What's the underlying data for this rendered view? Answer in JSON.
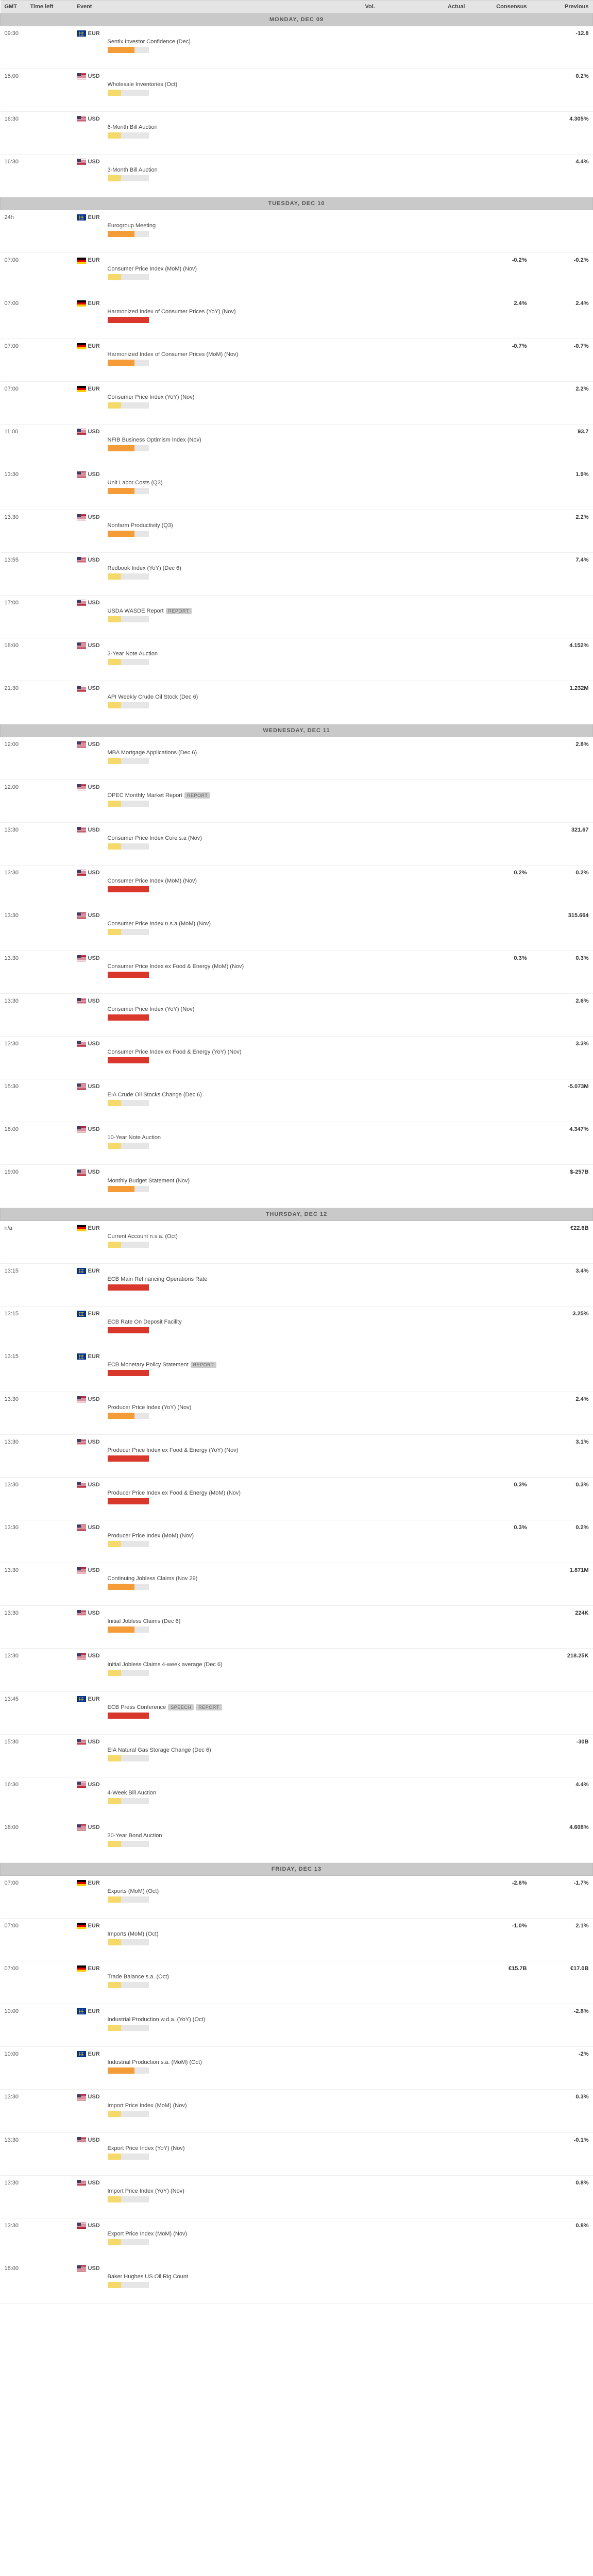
{
  "headers": {
    "gmt": "GMT",
    "tleft": "Time left",
    "event": "Event",
    "vol": "Vol.",
    "actual": "Actual",
    "consensus": "Consensus",
    "previous": "Previous"
  },
  "vol_colors": {
    "low": "#f6d96b",
    "med": "#f39c38",
    "high": "#d9362c",
    "bg": "#e6e6e6"
  },
  "days": [
    {
      "label": "MONDAY, DEC 09",
      "events": [
        {
          "time": "09:30",
          "cur": "EUR",
          "flag": "eu",
          "name": "Sentix Investor Confidence (Dec)",
          "vol": "med",
          "previous": "-12.8"
        },
        {
          "time": "15:00",
          "cur": "USD",
          "flag": "us",
          "name": "Wholesale Inventories (Oct)",
          "vol": "low",
          "previous": "0.2%"
        },
        {
          "time": "16:30",
          "cur": "USD",
          "flag": "us",
          "name": "6-Month Bill Auction",
          "vol": "low",
          "previous": "4.305%"
        },
        {
          "time": "16:30",
          "cur": "USD",
          "flag": "us",
          "name": "3-Month Bill Auction",
          "vol": "low",
          "previous": "4.4%"
        }
      ]
    },
    {
      "label": "TUESDAY, DEC 10",
      "events": [
        {
          "time": "24h",
          "cur": "EUR",
          "flag": "eu",
          "name": "Eurogroup Meeting",
          "vol": "med"
        },
        {
          "time": "07:00",
          "cur": "EUR",
          "flag": "de",
          "name": "Consumer Price Index (MoM) (Nov)",
          "vol": "low",
          "consensus": "-0.2%",
          "previous": "-0.2%"
        },
        {
          "time": "07:00",
          "cur": "EUR",
          "flag": "de",
          "name": "Harmonized Index of Consumer Prices (YoY) (Nov)",
          "vol": "high",
          "consensus": "2.4%",
          "previous": "2.4%"
        },
        {
          "time": "07:00",
          "cur": "EUR",
          "flag": "de",
          "name": "Harmonized Index of Consumer Prices (MoM) (Nov)",
          "vol": "med",
          "consensus": "-0.7%",
          "previous": "-0.7%"
        },
        {
          "time": "07:00",
          "cur": "EUR",
          "flag": "de",
          "name": "Consumer Price Index (YoY) (Nov)",
          "vol": "low",
          "previous": "2.2%"
        },
        {
          "time": "11:00",
          "cur": "USD",
          "flag": "us",
          "name": "NFIB Business Optimism Index (Nov)",
          "vol": "med",
          "previous": "93.7"
        },
        {
          "time": "13:30",
          "cur": "USD",
          "flag": "us",
          "name": "Unit Labor Costs (Q3)",
          "vol": "med",
          "previous": "1.9%"
        },
        {
          "time": "13:30",
          "cur": "USD",
          "flag": "us",
          "name": "Nonfarm Productivity (Q3)",
          "vol": "med",
          "previous": "2.2%"
        },
        {
          "time": "13:55",
          "cur": "USD",
          "flag": "us",
          "name": "Redbook Index (YoY) (Dec 6)",
          "vol": "low",
          "previous": "7.4%"
        },
        {
          "time": "17:00",
          "cur": "USD",
          "flag": "us",
          "name": "USDA WASDE Report",
          "badges": [
            "REPORT"
          ],
          "vol": "low"
        },
        {
          "time": "18:00",
          "cur": "USD",
          "flag": "us",
          "name": "3-Year Note Auction",
          "vol": "low",
          "previous": "4.152%"
        },
        {
          "time": "21:30",
          "cur": "USD",
          "flag": "us",
          "name": "API Weekly Crude Oil Stock (Dec 6)",
          "vol": "low",
          "previous": "1.232M"
        }
      ]
    },
    {
      "label": "WEDNESDAY, DEC 11",
      "events": [
        {
          "time": "12:00",
          "cur": "USD",
          "flag": "us",
          "name": "MBA Mortgage Applications (Dec 6)",
          "vol": "low",
          "previous": "2.8%"
        },
        {
          "time": "12:00",
          "cur": "USD",
          "flag": "us",
          "name": "OPEC Monthly Market Report",
          "badges": [
            "REPORT"
          ],
          "vol": "low"
        },
        {
          "time": "13:30",
          "cur": "USD",
          "flag": "us",
          "name": "Consumer Price Index Core s.a (Nov)",
          "vol": "low",
          "previous": "321.67"
        },
        {
          "time": "13:30",
          "cur": "USD",
          "flag": "us",
          "name": "Consumer Price Index (MoM) (Nov)",
          "vol": "high",
          "consensus": "0.2%",
          "previous": "0.2%"
        },
        {
          "time": "13:30",
          "cur": "USD",
          "flag": "us",
          "name": "Consumer Price Index n.s.a (MoM) (Nov)",
          "vol": "low",
          "previous": "315.664"
        },
        {
          "time": "13:30",
          "cur": "USD",
          "flag": "us",
          "name": "Consumer Price Index ex Food & Energy (MoM) (Nov)",
          "vol": "high",
          "consensus": "0.3%",
          "previous": "0.3%"
        },
        {
          "time": "13:30",
          "cur": "USD",
          "flag": "us",
          "name": "Consumer Price Index (YoY) (Nov)",
          "vol": "high",
          "previous": "2.6%"
        },
        {
          "time": "13:30",
          "cur": "USD",
          "flag": "us",
          "name": "Consumer Price Index ex Food & Energy (YoY) (Nov)",
          "vol": "high",
          "previous": "3.3%"
        },
        {
          "time": "15:30",
          "cur": "USD",
          "flag": "us",
          "name": "EIA Crude Oil Stocks Change (Dec 6)",
          "vol": "low",
          "previous": "-5.073M"
        },
        {
          "time": "18:00",
          "cur": "USD",
          "flag": "us",
          "name": "10-Year Note Auction",
          "vol": "low",
          "previous": "4.347%"
        },
        {
          "time": "19:00",
          "cur": "USD",
          "flag": "us",
          "name": "Monthly Budget Statement (Nov)",
          "vol": "med",
          "previous": "$-257B"
        }
      ]
    },
    {
      "label": "THURSDAY, DEC 12",
      "events": [
        {
          "time": "n/a",
          "cur": "EUR",
          "flag": "de",
          "name": "Current Account n.s.a. (Oct)",
          "vol": "low",
          "previous": "€22.6B"
        },
        {
          "time": "13:15",
          "cur": "EUR",
          "flag": "eu",
          "name": "ECB Main Refinancing Operations Rate",
          "vol": "high",
          "previous": "3.4%"
        },
        {
          "time": "13:15",
          "cur": "EUR",
          "flag": "eu",
          "name": "ECB Rate On Deposit Facility",
          "vol": "high",
          "previous": "3.25%"
        },
        {
          "time": "13:15",
          "cur": "EUR",
          "flag": "eu",
          "name": "ECB Monetary Policy Statement",
          "badges": [
            "REPORT"
          ],
          "vol": "high"
        },
        {
          "time": "13:30",
          "cur": "USD",
          "flag": "us",
          "name": "Producer Price Index (YoY) (Nov)",
          "vol": "med",
          "previous": "2.4%"
        },
        {
          "time": "13:30",
          "cur": "USD",
          "flag": "us",
          "name": "Producer Price Index ex Food & Energy (YoY) (Nov)",
          "vol": "high",
          "previous": "3.1%"
        },
        {
          "time": "13:30",
          "cur": "USD",
          "flag": "us",
          "name": "Producer Price Index ex Food & Energy (MoM) (Nov)",
          "vol": "high",
          "consensus": "0.3%",
          "previous": "0.3%"
        },
        {
          "time": "13:30",
          "cur": "USD",
          "flag": "us",
          "name": "Producer Price Index (MoM) (Nov)",
          "vol": "low",
          "consensus": "0.3%",
          "previous": "0.2%"
        },
        {
          "time": "13:30",
          "cur": "USD",
          "flag": "us",
          "name": "Continuing Jobless Claims (Nov 29)",
          "vol": "med",
          "previous": "1.871M"
        },
        {
          "time": "13:30",
          "cur": "USD",
          "flag": "us",
          "name": "Initial Jobless Claims (Dec 6)",
          "vol": "med",
          "previous": "224K"
        },
        {
          "time": "13:30",
          "cur": "USD",
          "flag": "us",
          "name": "Initial Jobless Claims 4-week average (Dec 6)",
          "vol": "low",
          "previous": "218.25K"
        },
        {
          "time": "13:45",
          "cur": "EUR",
          "flag": "eu",
          "name": "ECB Press Conference",
          "badges": [
            "SPEECH",
            "REPORT"
          ],
          "vol": "high"
        },
        {
          "time": "15:30",
          "cur": "USD",
          "flag": "us",
          "name": "EIA Natural Gas Storage Change (Dec 6)",
          "vol": "low",
          "previous": "-30B"
        },
        {
          "time": "16:30",
          "cur": "USD",
          "flag": "us",
          "name": "4-Week Bill Auction",
          "vol": "low",
          "previous": "4.4%"
        },
        {
          "time": "18:00",
          "cur": "USD",
          "flag": "us",
          "name": "30-Year Bond Auction",
          "vol": "low",
          "previous": "4.608%"
        }
      ]
    },
    {
      "label": "FRIDAY, DEC 13",
      "events": [
        {
          "time": "07:00",
          "cur": "EUR",
          "flag": "de",
          "name": "Exports (MoM) (Oct)",
          "vol": "low",
          "consensus": "-2.6%",
          "previous": "-1.7%"
        },
        {
          "time": "07:00",
          "cur": "EUR",
          "flag": "de",
          "name": "Imports (MoM) (Oct)",
          "vol": "low",
          "consensus": "-1.0%",
          "previous": "2.1%"
        },
        {
          "time": "07:00",
          "cur": "EUR",
          "flag": "de",
          "name": "Trade Balance s.a. (Oct)",
          "vol": "low",
          "consensus": "€15.7B",
          "previous": "€17.0B"
        },
        {
          "time": "10:00",
          "cur": "EUR",
          "flag": "eu",
          "name": "Industrial Production w.d.a. (YoY) (Oct)",
          "vol": "low",
          "previous": "-2.8%"
        },
        {
          "time": "10:00",
          "cur": "EUR",
          "flag": "eu",
          "name": "Industrial Production s.a. (MoM) (Oct)",
          "vol": "med",
          "previous": "-2%"
        },
        {
          "time": "13:30",
          "cur": "USD",
          "flag": "us",
          "name": "Import Price Index (MoM) (Nov)",
          "vol": "low",
          "previous": "0.3%"
        },
        {
          "time": "13:30",
          "cur": "USD",
          "flag": "us",
          "name": "Export Price Index (YoY) (Nov)",
          "vol": "low",
          "previous": "-0.1%"
        },
        {
          "time": "13:30",
          "cur": "USD",
          "flag": "us",
          "name": "Import Price Index (YoY) (Nov)",
          "vol": "low",
          "previous": "0.8%"
        },
        {
          "time": "13:30",
          "cur": "USD",
          "flag": "us",
          "name": "Export Price Index (MoM) (Nov)",
          "vol": "low",
          "previous": "0.8%"
        },
        {
          "time": "18:00",
          "cur": "USD",
          "flag": "us",
          "name": "Baker Hughes US Oil Rig Count",
          "vol": "low"
        }
      ]
    }
  ]
}
